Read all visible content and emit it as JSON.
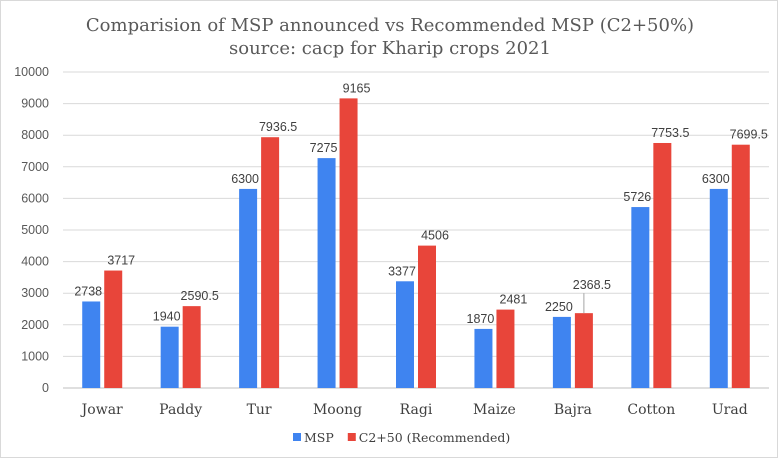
{
  "chart_data": {
    "type": "bar",
    "title": "Comparision of MSP announced vs Recommended MSP (C2+50%)",
    "subtitle": "source: cacp for Kharip crops 2021",
    "categories": [
      "Jowar",
      "Paddy",
      "Tur",
      "Moong",
      "Ragi",
      "Maize",
      "Bajra",
      "Cotton",
      "Urad"
    ],
    "series": [
      {
        "name": "MSP",
        "color": "#3f84f0",
        "values": [
          2738,
          1940,
          6300,
          7275,
          3377,
          1870,
          2250,
          5726,
          6300
        ],
        "labels": [
          "2738",
          "1940",
          "6300",
          "7275",
          "3377",
          "1870",
          "2250",
          "5726",
          "6300"
        ]
      },
      {
        "name": "C2+50 (Recommended)",
        "color": "#e8453a",
        "values": [
          3717,
          2590.5,
          7936.5,
          9165,
          4506,
          2481,
          2368.5,
          7753.5,
          7699.5
        ],
        "labels": [
          "3717",
          "2590.5",
          "7936.5",
          "9165",
          "4506",
          "2481",
          "2368.5",
          "7753.5",
          "7699.5"
        ]
      }
    ],
    "ylim": [
      0,
      10000
    ],
    "yticks": [
      "0",
      "1000",
      "2000",
      "3000",
      "4000",
      "5000",
      "6000",
      "7000",
      "8000",
      "9000",
      "10000"
    ],
    "grid": true,
    "legend_position": "bottom"
  }
}
